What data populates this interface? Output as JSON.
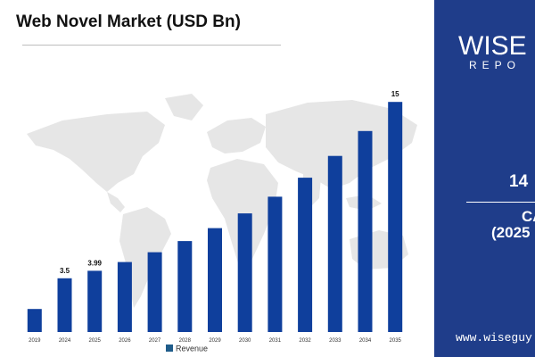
{
  "chart_data": {
    "type": "bar",
    "title": "Web Novel Market (USD Bn)",
    "categories": [
      "2019",
      "2024",
      "2025",
      "2026",
      "2027",
      "2028",
      "2029",
      "2030",
      "2031",
      "2032",
      "2033",
      "2034",
      "2035"
    ],
    "series": [
      {
        "name": "Revenue",
        "values": [
          1.5,
          3.5,
          3.99,
          4.56,
          5.2,
          5.93,
          6.77,
          7.73,
          8.82,
          10.06,
          11.48,
          13.1,
          15
        ],
        "data_labels": [
          "",
          "3.5",
          "3.99",
          "",
          "",
          "",
          "",
          "",
          "",
          "",
          "",
          "",
          "15"
        ],
        "color": "#0f3f9c"
      }
    ],
    "ylim": [
      0,
      16
    ],
    "grid": false,
    "legend": "bottom-center"
  },
  "sidebar": {
    "logo_main": "WISE G",
    "logo_sub": "REPO",
    "stat_value": "14",
    "stat_label": "CA",
    "stat_period": "(2025",
    "website": "www.wiseguy"
  },
  "colors": {
    "bar": "#0f3f9c",
    "sidebar_bg": "#1f3d8a",
    "map": "#e6e6e6",
    "legend_swatch": "#1f5c8a"
  }
}
